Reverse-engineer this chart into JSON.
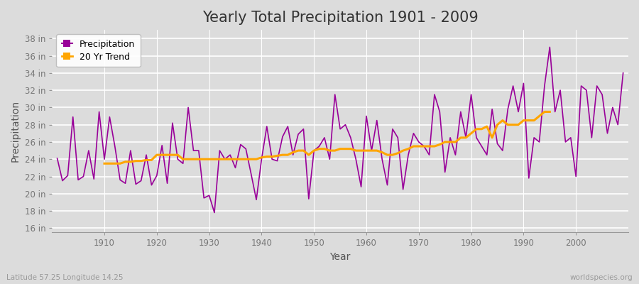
{
  "title": "Yearly Total Precipitation 1901 - 2009",
  "xlabel": "Year",
  "ylabel": "Precipitation",
  "subtitle_left": "Latitude 57.25 Longitude 14.25",
  "subtitle_right": "worldspecies.org",
  "years": [
    1901,
    1902,
    1903,
    1904,
    1905,
    1906,
    1907,
    1908,
    1909,
    1910,
    1911,
    1912,
    1913,
    1914,
    1915,
    1916,
    1917,
    1918,
    1919,
    1920,
    1921,
    1922,
    1923,
    1924,
    1925,
    1926,
    1927,
    1928,
    1929,
    1930,
    1931,
    1932,
    1933,
    1934,
    1935,
    1936,
    1937,
    1938,
    1939,
    1940,
    1941,
    1942,
    1943,
    1944,
    1945,
    1946,
    1947,
    1948,
    1949,
    1950,
    1951,
    1952,
    1953,
    1954,
    1955,
    1956,
    1957,
    1958,
    1959,
    1960,
    1961,
    1962,
    1963,
    1964,
    1965,
    1966,
    1967,
    1968,
    1969,
    1970,
    1971,
    1972,
    1973,
    1974,
    1975,
    1976,
    1977,
    1978,
    1979,
    1980,
    1981,
    1982,
    1983,
    1984,
    1985,
    1986,
    1987,
    1988,
    1989,
    1990,
    1991,
    1992,
    1993,
    1994,
    1995,
    1996,
    1997,
    1998,
    1999,
    2000,
    2001,
    2002,
    2003,
    2004,
    2005,
    2006,
    2007,
    2008,
    2009
  ],
  "precip": [
    24.1,
    21.5,
    22.1,
    28.9,
    21.6,
    22.0,
    25.0,
    21.7,
    29.5,
    24.0,
    28.9,
    25.5,
    21.6,
    21.2,
    25.0,
    21.1,
    21.5,
    24.5,
    21.0,
    22.1,
    25.6,
    21.2,
    28.2,
    24.0,
    23.5,
    30.0,
    25.0,
    25.0,
    19.5,
    19.8,
    17.8,
    25.0,
    24.0,
    24.5,
    23.0,
    25.7,
    25.2,
    22.3,
    19.3,
    24.0,
    27.8,
    24.0,
    23.8,
    26.6,
    27.8,
    24.5,
    26.9,
    27.5,
    19.4,
    25.0,
    25.5,
    26.5,
    24.0,
    31.5,
    27.5,
    28.0,
    26.5,
    24.0,
    20.8,
    29.0,
    25.0,
    28.5,
    24.0,
    21.0,
    27.5,
    26.5,
    20.5,
    24.5,
    27.0,
    26.0,
    25.5,
    24.5,
    31.5,
    29.5,
    22.5,
    26.5,
    24.5,
    29.5,
    26.5,
    31.5,
    26.5,
    25.5,
    24.5,
    29.8,
    25.8,
    25.0,
    29.8,
    32.5,
    29.5,
    32.8,
    21.8,
    26.5,
    26.0,
    32.5,
    37.0,
    29.5,
    32.0,
    26.0,
    26.5,
    22.0,
    32.5,
    32.0,
    26.5,
    32.5,
    31.5,
    27.0,
    30.0,
    28.0,
    34.0
  ],
  "trend": [
    null,
    null,
    null,
    null,
    null,
    null,
    null,
    null,
    null,
    23.5,
    23.5,
    23.5,
    23.5,
    23.7,
    23.7,
    23.8,
    23.8,
    23.9,
    23.9,
    24.5,
    24.5,
    24.5,
    24.5,
    24.5,
    24.0,
    24.0,
    24.0,
    24.0,
    24.0,
    24.0,
    24.0,
    24.0,
    24.0,
    24.0,
    24.0,
    24.0,
    24.0,
    24.0,
    24.0,
    24.2,
    24.3,
    24.3,
    24.4,
    24.5,
    24.5,
    24.8,
    25.0,
    25.0,
    24.5,
    25.0,
    25.2,
    25.2,
    25.0,
    25.0,
    25.2,
    25.2,
    25.2,
    25.0,
    25.0,
    25.0,
    25.0,
    25.0,
    24.8,
    24.5,
    24.5,
    24.7,
    25.0,
    25.2,
    25.5,
    25.5,
    25.5,
    25.5,
    25.5,
    25.7,
    26.0,
    26.0,
    26.0,
    26.5,
    26.5,
    27.0,
    27.5,
    27.5,
    27.8,
    26.5,
    28.0,
    28.5,
    28.0,
    28.0,
    28.0,
    28.5,
    28.5,
    28.5,
    29.0,
    29.5,
    29.5,
    null,
    null,
    null,
    null,
    null,
    null,
    null,
    null,
    null,
    null,
    null,
    null,
    null
  ],
  "precip_color": "#990099",
  "trend_color": "#FFA500",
  "background_color": "#DCDCDC",
  "plot_bg_color": "#DCDCDC",
  "grid_color": "#FFFFFF",
  "ylim": [
    15.5,
    39
  ],
  "yticks": [
    16,
    18,
    20,
    22,
    24,
    26,
    28,
    30,
    32,
    34,
    36,
    38
  ],
  "xlim": [
    1900,
    2010
  ],
  "xticks": [
    1910,
    1920,
    1930,
    1940,
    1950,
    1960,
    1970,
    1980,
    1990,
    2000
  ],
  "title_fontsize": 15,
  "axis_label_fontsize": 10,
  "tick_fontsize": 8.5,
  "legend_fontsize": 9
}
